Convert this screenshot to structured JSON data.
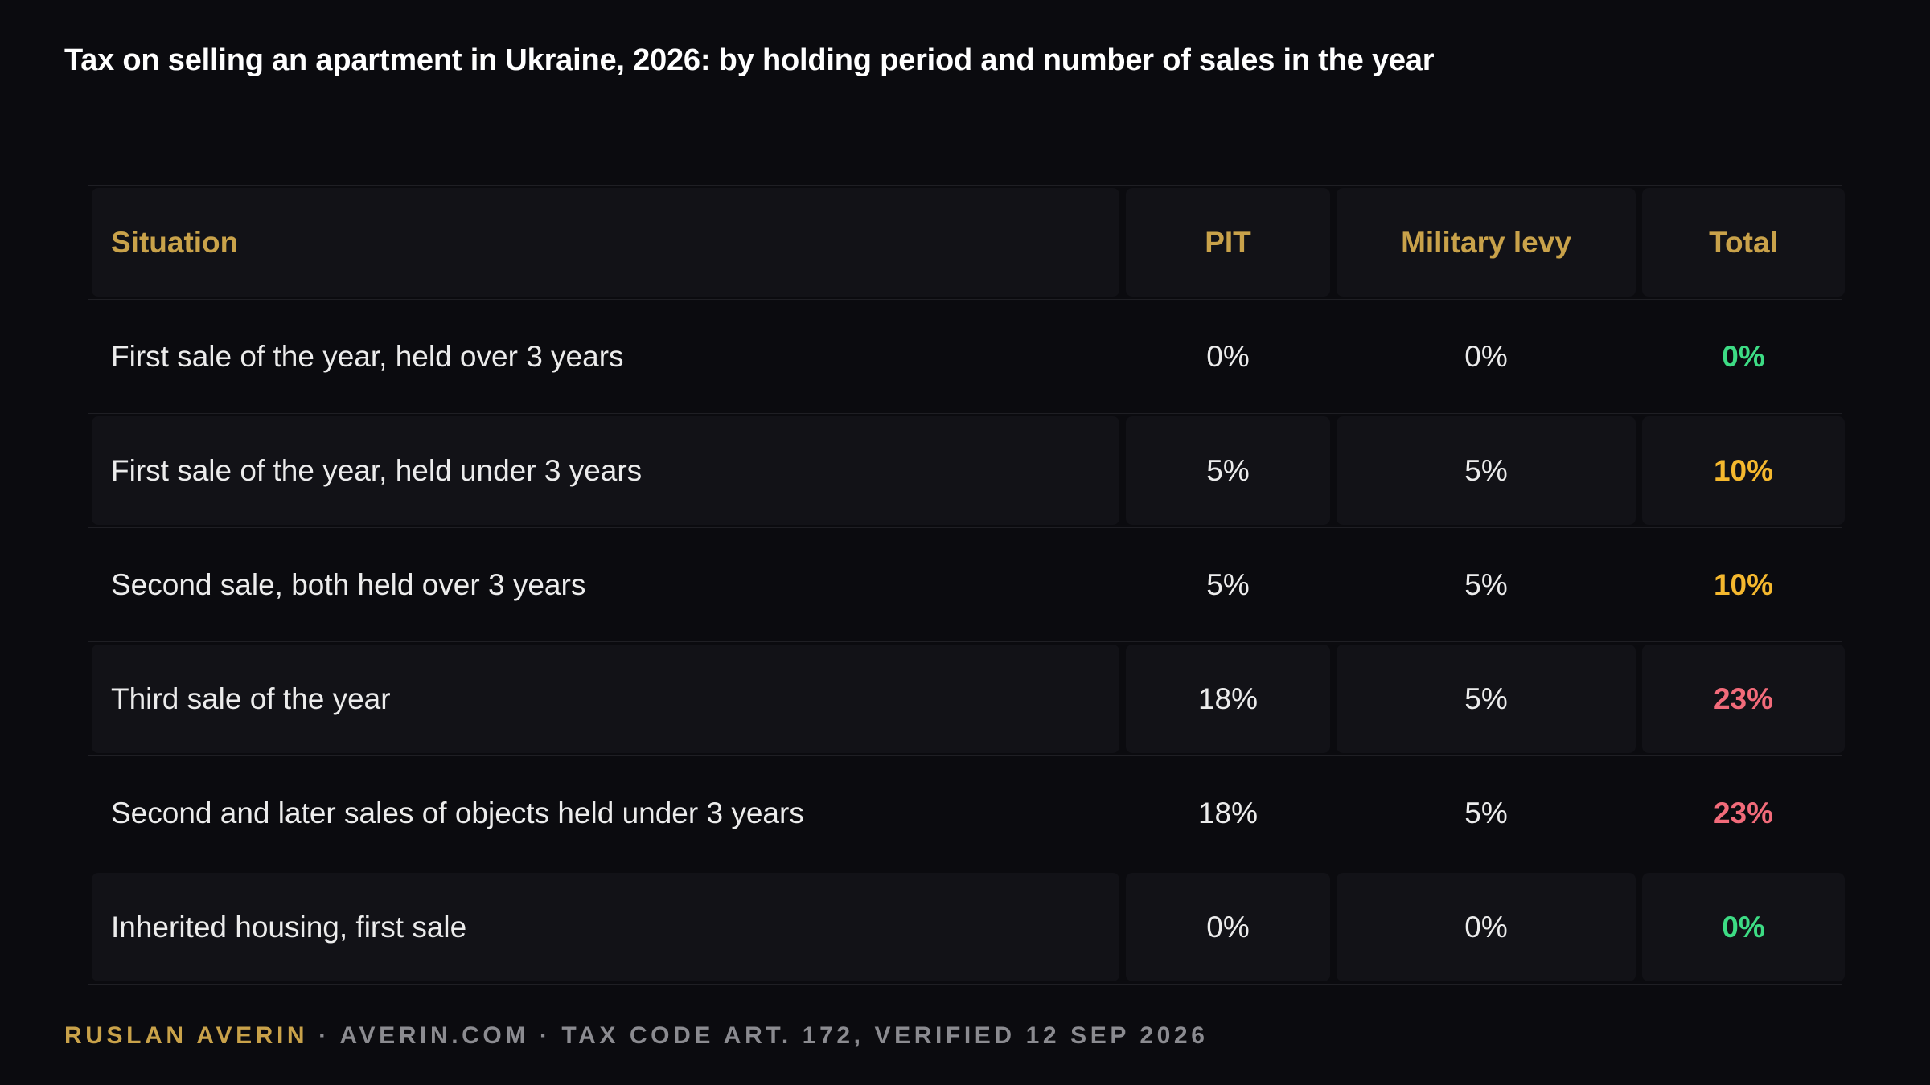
{
  "title": "Tax on selling an apartment in Ukraine, 2026: by holding period and number of sales in the year",
  "chart_data": {
    "type": "table",
    "columns": [
      "Situation",
      "PIT",
      "Military levy",
      "Total"
    ],
    "rows": [
      {
        "situation": "First sale of the year, held over 3 years",
        "pit": "0%",
        "military_levy": "0%",
        "total": "0%",
        "total_color": "#3ddc84"
      },
      {
        "situation": "First sale of the year, held under 3 years",
        "pit": "5%",
        "military_levy": "5%",
        "total": "10%",
        "total_color": "#f5b82e"
      },
      {
        "situation": "Second sale, both held over 3 years",
        "pit": "5%",
        "military_levy": "5%",
        "total": "10%",
        "total_color": "#f5b82e"
      },
      {
        "situation": "Third sale of the year",
        "pit": "18%",
        "military_levy": "5%",
        "total": "23%",
        "total_color": "#f26b7a"
      },
      {
        "situation": "Second and later sales of objects held under 3 years",
        "pit": "18%",
        "military_levy": "5%",
        "total": "23%",
        "total_color": "#f26b7a"
      },
      {
        "situation": "Inherited housing, first sale",
        "pit": "0%",
        "military_levy": "0%",
        "total": "0%",
        "total_color": "#3ddc84"
      }
    ]
  },
  "colors": {
    "background": "#0b0b0f",
    "header_text": "#c9a24a",
    "shaded_cell": "#121217",
    "green": "#3ddc84",
    "amber": "#f5b82e",
    "red": "#f26b7a"
  },
  "footer": {
    "author": "RUSLAN AVERIN",
    "rest": " · AVERIN.COM · TAX CODE ART. 172, VERIFIED 12 SEP 2026"
  }
}
